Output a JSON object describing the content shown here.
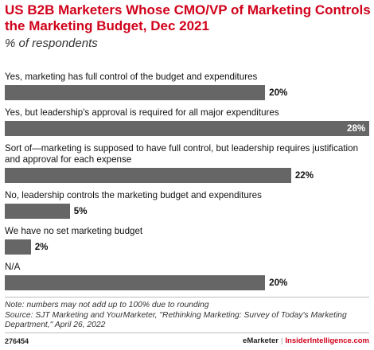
{
  "header": {
    "title": "US B2B Marketers Whose CMO/VP of Marketing Controls the Marketing Budget, Dec 2021",
    "subtitle": "% of respondents"
  },
  "chart_data": {
    "type": "bar",
    "orientation": "horizontal",
    "categories": [
      "Yes, marketing has full control of the budget and expenditures",
      "Yes, but leadership's approval is required for all major expenditures",
      "Sort of—marketing is supposed to have full control, but leadership requires justification and approval for each expense",
      "No, leadership controls the marketing budget and expenditures",
      "We have no set marketing budget",
      "N/A"
    ],
    "values": [
      20,
      28,
      22,
      5,
      2,
      20
    ],
    "value_labels": [
      "20%",
      "28%",
      "22%",
      "5%",
      "2%",
      "20%"
    ],
    "xlim": [
      0,
      28
    ],
    "bar_color": "#666666",
    "grid": false,
    "legend": "none"
  },
  "footer": {
    "note": "Note: numbers may not add up to 100% due to rounding",
    "source": "Source: SJT Marketing and YourMarketer, \"Rethinking Marketing: Survey of Today's Marketing Department,\" April 26, 2022",
    "chart_id": "276454",
    "brand_emarketer": "eMarketer",
    "brand_separator": "|",
    "brand_insider": "InsiderIntelligence.com"
  },
  "colors": {
    "title": "#d0021b",
    "bar": "#666666",
    "divider": "#bdbdbd"
  }
}
